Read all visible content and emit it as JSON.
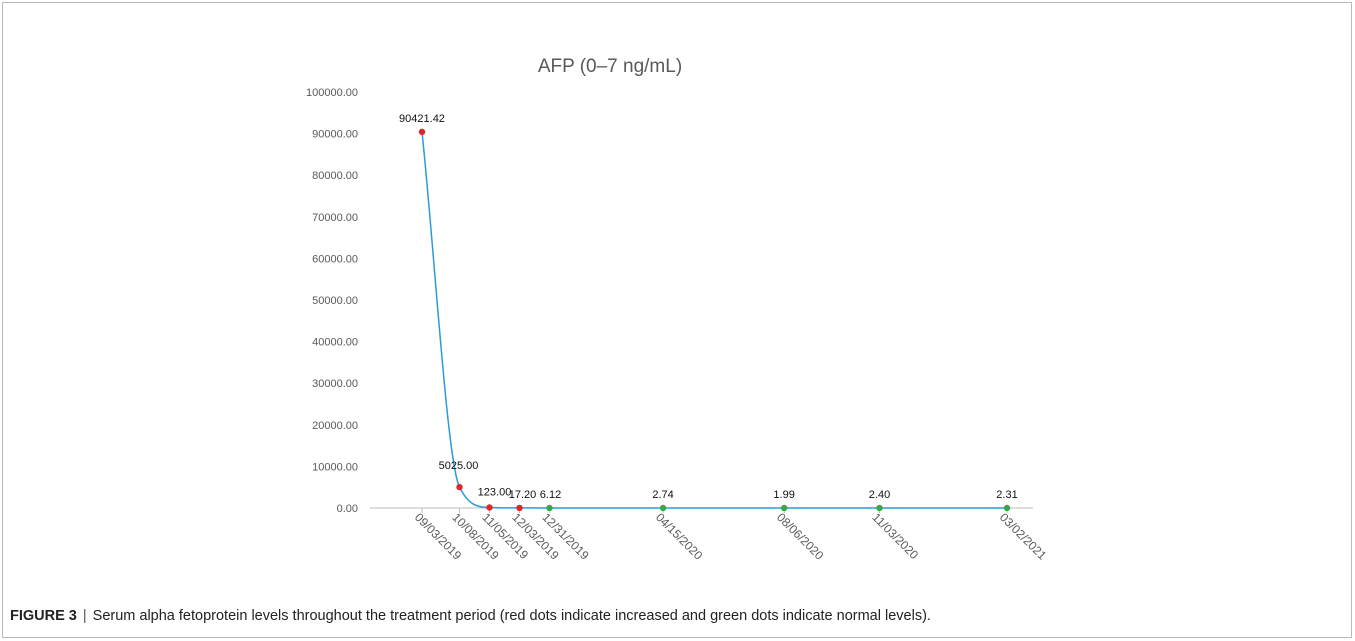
{
  "figure": {
    "label": "FIGURE 3",
    "caption": "Serum alpha fetoprotein levels throughout the treatment period (red dots indicate increased and green dots indicate normal levels)."
  },
  "chart_data": {
    "type": "line",
    "title": "AFP (0–7 ng/mL)",
    "xlabel": "",
    "ylabel": "",
    "ylim": [
      0,
      100000
    ],
    "yticks": [
      "0.00",
      "10000.00",
      "20000.00",
      "30000.00",
      "40000.00",
      "50000.00",
      "60000.00",
      "70000.00",
      "80000.00",
      "90000.00",
      "100000.00"
    ],
    "x": [
      "09/03/2019",
      "10/08/2019",
      "11/05/2019",
      "12/03/2019",
      "12/31/2019",
      "04/15/2020",
      "08/06/2020",
      "11/03/2020",
      "03/02/2021"
    ],
    "series": [
      {
        "values": [
          90421.42,
          5025.0,
          123.0,
          17.2,
          6.12,
          2.74,
          1.99,
          2.4,
          2.31
        ],
        "labels": [
          "90421.42",
          "5025.00",
          "123.00",
          "17.20",
          "6.12",
          "2.74",
          "1.99",
          "2.40",
          "2.31"
        ],
        "point_status": [
          "increased",
          "increased",
          "increased",
          "increased",
          "normal",
          "normal",
          "normal",
          "normal",
          "normal"
        ]
      }
    ],
    "grid": false,
    "smooth": true,
    "colors": {
      "line": "#2b9bd6",
      "increased": "#e0262a",
      "normal": "#3aa648",
      "axis": "#bdbdbd",
      "text": "#595959"
    }
  }
}
